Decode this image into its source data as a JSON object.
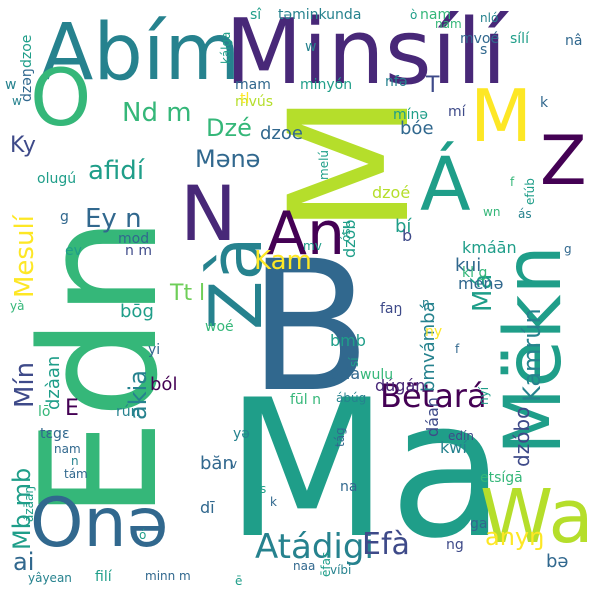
{
  "palette": {
    "purple": "#440154",
    "indigo": "#482878",
    "blue": "#3e4a89",
    "slate": "#31688e",
    "teal": "#26828e",
    "cyan": "#1f9e89",
    "green": "#35b779",
    "lime": "#6ece58",
    "yellowgreen": "#b5de2b",
    "yellow": "#fde725"
  },
  "words": [
    {
      "text": "Ma",
      "color": "cyan",
      "orient": "h"
    },
    {
      "text": "B",
      "color": "slate",
      "orient": "h"
    },
    {
      "text": "M",
      "color": "yellowgreen",
      "orient": "v"
    },
    {
      "text": "Edn",
      "color": "green",
      "orient": "v"
    },
    {
      "text": "Minsílí",
      "color": "indigo",
      "orient": "h"
    },
    {
      "text": "Abím",
      "color": "teal",
      "orient": "h"
    },
    {
      "text": "Mëkn",
      "color": "cyan",
      "orient": "v"
    },
    {
      "text": "Onə",
      "color": "slate",
      "orient": "h"
    },
    {
      "text": "Wa",
      "color": "yellowgreen",
      "orient": "h"
    },
    {
      "text": "Zá",
      "color": "purple",
      "orient": "h"
    },
    {
      "text": "M",
      "color": "yellow",
      "orient": "h"
    },
    {
      "text": "Á",
      "color": "cyan",
      "orient": "h"
    },
    {
      "text": "N",
      "color": "indigo",
      "orient": "h"
    },
    {
      "text": "An",
      "color": "purple",
      "orient": "h"
    },
    {
      "text": "Zà",
      "color": "teal",
      "orient": "v"
    },
    {
      "text": "O",
      "color": "green",
      "orient": "h"
    },
    {
      "text": "Atádigi",
      "color": "teal",
      "orient": "h"
    },
    {
      "text": "Bëtará",
      "color": "purple",
      "orient": "h"
    },
    {
      "text": "Efà",
      "color": "blue",
      "orient": "h"
    },
    {
      "text": "Nd m",
      "color": "green",
      "orient": "h"
    },
    {
      "text": "Dzé",
      "color": "green",
      "orient": "h"
    },
    {
      "text": "Ky",
      "color": "blue",
      "orient": "h"
    },
    {
      "text": "afidí",
      "color": "cyan",
      "orient": "h"
    },
    {
      "text": "Mənə",
      "color": "slate",
      "orient": "h"
    },
    {
      "text": "Ey n",
      "color": "slate",
      "orient": "h"
    },
    {
      "text": "Mesulí",
      "color": "yellow",
      "orient": "v"
    },
    {
      "text": "Kam",
      "color": "yellow",
      "orient": "h"
    },
    {
      "text": "Tt l",
      "color": "lime",
      "orient": "h"
    },
    {
      "text": "Má",
      "color": "cyan",
      "orient": "v"
    },
    {
      "text": "Mín",
      "color": "blue",
      "orient": "v"
    },
    {
      "text": "akia",
      "color": "teal",
      "orient": "v"
    },
    {
      "text": "E",
      "color": "purple",
      "orient": "h"
    },
    {
      "text": "Mb mb",
      "color": "cyan",
      "orient": "v"
    },
    {
      "text": "ai",
      "color": "slate",
      "orient": "h"
    },
    {
      "text": "anyŋ",
      "color": "yellow",
      "orient": "h"
    },
    {
      "text": "Kamrún",
      "color": "teal",
      "orient": "v"
    },
    {
      "text": "dzóbo",
      "color": "blue",
      "orient": "v"
    },
    {
      "text": "bə",
      "color": "slate",
      "orient": "h"
    },
    {
      "text": "T",
      "color": "blue",
      "orient": "h"
    },
    {
      "text": "bóe",
      "color": "slate",
      "orient": "h"
    },
    {
      "text": "dzoe",
      "color": "slate",
      "orient": "h"
    },
    {
      "text": "bí",
      "color": "cyan",
      "orient": "h"
    },
    {
      "text": "dzoé",
      "color": "yellowgreen",
      "orient": "h"
    },
    {
      "text": "dzób",
      "color": "cyan",
      "orient": "v"
    },
    {
      "text": "bōg",
      "color": "cyan",
      "orient": "h"
    },
    {
      "text": "ból",
      "color": "purple",
      "orient": "h"
    },
    {
      "text": "dzàan",
      "color": "cyan",
      "orient": "v"
    },
    {
      "text": "bmvámbá",
      "color": "teal",
      "orient": "v"
    },
    {
      "text": "bmb",
      "color": "cyan",
      "orient": "h"
    },
    {
      "text": "dúgán",
      "color": "indigo",
      "orient": "h"
    },
    {
      "text": "dda",
      "color": "slate",
      "orient": "h"
    },
    {
      "text": "dáan",
      "color": "blue",
      "orient": "v"
    },
    {
      "text": "kwí",
      "color": "teal",
      "orient": "h"
    },
    {
      "text": "băn",
      "color": "slate",
      "orient": "h"
    },
    {
      "text": "dī",
      "color": "slate",
      "orient": "h"
    },
    {
      "text": "b",
      "color": "blue",
      "orient": "h"
    },
    {
      "text": "kui",
      "color": "slate",
      "orient": "h"
    },
    {
      "text": "kmáān",
      "color": "cyan",
      "orient": "h"
    },
    {
      "text": "menə",
      "color": "slate",
      "orient": "h"
    },
    {
      "text": "faŋ",
      "color": "blue",
      "orient": "h"
    },
    {
      "text": "mam",
      "color": "slate",
      "orient": "h"
    },
    {
      "text": "mvús",
      "color": "yellowgreen",
      "orient": "h"
    },
    {
      "text": "minyón",
      "color": "cyan",
      "orient": "h"
    },
    {
      "text": "mí",
      "color": "blue",
      "orient": "h"
    },
    {
      "text": "mínə",
      "color": "cyan",
      "orient": "h"
    },
    {
      "text": "nfə",
      "color": "teal",
      "orient": "h"
    },
    {
      "text": "sî",
      "color": "cyan",
      "orient": "h"
    },
    {
      "text": "təminkunda",
      "color": "teal",
      "orient": "h"
    },
    {
      "text": "nam",
      "color": "green",
      "orient": "h"
    },
    {
      "text": "nló",
      "color": "teal",
      "orient": "h"
    },
    {
      "text": "mvoé",
      "color": "slate",
      "orient": "h"
    },
    {
      "text": "sílí",
      "color": "cyan",
      "orient": "h"
    },
    {
      "text": "nâ",
      "color": "slate",
      "orient": "h"
    },
    {
      "text": "s",
      "color": "slate",
      "orient": "h"
    },
    {
      "text": "w",
      "color": "teal",
      "orient": "h"
    },
    {
      "text": "kálga",
      "color": "cyan",
      "orient": "v"
    },
    {
      "text": "dzəŋ",
      "color": "slate",
      "orient": "v"
    },
    {
      "text": "dzoe",
      "color": "cyan",
      "orient": "v"
    },
    {
      "text": "w",
      "color": "teal",
      "orient": "h"
    },
    {
      "text": "tl",
      "color": "yellow",
      "orient": "h"
    },
    {
      "text": "olugú",
      "color": "cyan",
      "orient": "h"
    },
    {
      "text": "melú",
      "color": "cyan",
      "orient": "v"
    },
    {
      "text": "efúb",
      "color": "cyan",
      "orient": "v"
    },
    {
      "text": "k",
      "color": "slate",
      "orient": "h"
    },
    {
      "text": "f",
      "color": "green",
      "orient": "h"
    },
    {
      "text": "g",
      "color": "slate",
      "orient": "h"
    },
    {
      "text": "ev",
      "color": "cyan",
      "orient": "h"
    },
    {
      "text": "mod",
      "color": "slate",
      "orient": "h"
    },
    {
      "text": "n m",
      "color": "blue",
      "orient": "h"
    },
    {
      "text": "mv",
      "color": "cyan",
      "orient": "h"
    },
    {
      "text": "ósu",
      "color": "cyan",
      "orient": "v"
    },
    {
      "text": "wn",
      "color": "green",
      "orient": "h"
    },
    {
      "text": "ás",
      "color": "teal",
      "orient": "h"
    },
    {
      "text": "g",
      "color": "slate",
      "orient": "h"
    },
    {
      "text": "kl g",
      "color": "green",
      "orient": "h"
    },
    {
      "text": "ŋ",
      "color": "teal",
      "orient": "h"
    },
    {
      "text": "ny",
      "color": "yellow",
      "orient": "h"
    },
    {
      "text": "f",
      "color": "slate",
      "orient": "h"
    },
    {
      "text": "woé",
      "color": "green",
      "orient": "h"
    },
    {
      "text": "yi",
      "color": "slate",
      "orient": "h"
    },
    {
      "text": "sí",
      "color": "cyan",
      "orient": "v"
    },
    {
      "text": "wulu",
      "color": "green",
      "orient": "h"
    },
    {
      "text": "lō",
      "color": "green",
      "orient": "h"
    },
    {
      "text": "rún",
      "color": "teal",
      "orient": "h"
    },
    {
      "text": "fūl n",
      "color": "green",
      "orient": "h"
    },
    {
      "text": "ábúg",
      "color": "teal",
      "orient": "h"
    },
    {
      "text": "tɛgɛ",
      "color": "slate",
      "orient": "h"
    },
    {
      "text": "nam",
      "color": "slate",
      "orient": "h"
    },
    {
      "text": "n",
      "color": "teal",
      "orient": "h"
    },
    {
      "text": "tám",
      "color": "slate",
      "orient": "h"
    },
    {
      "text": "yə",
      "color": "teal",
      "orient": "h"
    },
    {
      "text": "v",
      "color": "slate",
      "orient": "h"
    },
    {
      "text": "tág",
      "color": "slate",
      "orient": "v"
    },
    {
      "text": "nyí",
      "color": "cyan",
      "orient": "v"
    },
    {
      "text": "edín",
      "color": "blue",
      "orient": "h"
    },
    {
      "text": "etsígā",
      "color": "green",
      "orient": "h"
    },
    {
      "text": "na",
      "color": "slate",
      "orient": "h"
    },
    {
      "text": "s",
      "color": "cyan",
      "orient": "h"
    },
    {
      "text": "ēfas",
      "color": "cyan",
      "orient": "v"
    },
    {
      "text": "k",
      "color": "slate",
      "orient": "h"
    },
    {
      "text": "ázāaŋ",
      "color": "cyan",
      "orient": "v"
    },
    {
      "text": "ó",
      "color": "cyan",
      "orient": "h"
    },
    {
      "text": "ga",
      "color": "slate",
      "orient": "h"
    },
    {
      "text": "ng",
      "color": "blue",
      "orient": "h"
    },
    {
      "text": "yâyean",
      "color": "teal",
      "orient": "h"
    },
    {
      "text": "filí",
      "color": "cyan",
      "orient": "h"
    },
    {
      "text": "minn m",
      "color": "slate",
      "orient": "h"
    },
    {
      "text": "ē",
      "color": "cyan",
      "orient": "h"
    },
    {
      "text": "naa",
      "color": "slate",
      "orient": "h"
    },
    {
      "text": "víbi",
      "color": "teal",
      "orient": "h"
    },
    {
      "text": "yà",
      "color": "green",
      "orient": "h"
    },
    {
      "text": "w",
      "color": "teal",
      "orient": "h"
    },
    {
      "text": "nam",
      "color": "green",
      "orient": "h"
    },
    {
      "text": "ò",
      "color": "cyan",
      "orient": "h"
    }
  ]
}
